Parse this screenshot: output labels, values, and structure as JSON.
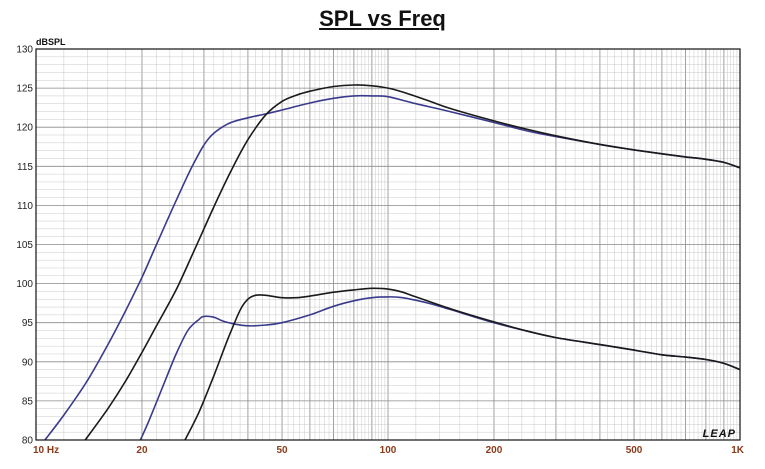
{
  "chart_data": {
    "type": "line",
    "title": "SPL vs Freq",
    "ylabel": "dBSPL",
    "xscale": "log",
    "xlim": [
      10,
      1000
    ],
    "ylim": [
      80,
      130
    ],
    "grid": true,
    "y_ticks": [
      "80",
      "85",
      "90",
      "95",
      "100",
      "105",
      "110",
      "115",
      "120",
      "125",
      "130"
    ],
    "y_tick_values": [
      80,
      85,
      90,
      95,
      100,
      105,
      110,
      115,
      120,
      125,
      130
    ],
    "x_ticks": [
      "10 Hz",
      "20",
      "50",
      "100",
      "200",
      "500",
      "1K"
    ],
    "x_tick_values": [
      10,
      20,
      50,
      100,
      200,
      500,
      1000
    ],
    "brand": "LEAP",
    "colors": {
      "blue": "#3a3a8c",
      "black": "#1a1a1a",
      "xtick": "#8b3a1a",
      "grid": "#bdbdbd",
      "grid_major": "#8a8a8a"
    },
    "series": [
      {
        "color": "#3a3a8c",
        "x": [
          10.6,
          12,
          14,
          16,
          18,
          20,
          22,
          25,
          28,
          31,
          35,
          40,
          45,
          50,
          60,
          70,
          80,
          90,
          100,
          120,
          150,
          200,
          250,
          300,
          400,
          500,
          600,
          700,
          800,
          900,
          1000
        ],
        "y": [
          80,
          83.2,
          87.6,
          92.2,
          96.6,
          100.8,
          105.0,
          110.6,
          115.3,
          118.6,
          120.4,
          121.2,
          121.7,
          122.2,
          123.1,
          123.7,
          124.0,
          124.0,
          123.9,
          123.0,
          122.0,
          120.6,
          119.5,
          118.8,
          117.8,
          117.1,
          116.6,
          116.2,
          115.9,
          115.5,
          114.8
        ]
      },
      {
        "color": "#1a1a1a",
        "x": [
          13.8,
          16,
          18,
          20,
          22,
          25,
          28,
          32,
          36,
          40,
          45,
          50,
          55,
          60,
          70,
          80,
          90,
          100,
          110,
          130,
          150,
          200,
          250,
          300,
          400,
          500,
          600,
          700,
          800,
          900,
          1000
        ],
        "y": [
          80,
          84.0,
          87.6,
          91.2,
          94.6,
          99.2,
          104.0,
          109.8,
          114.6,
          118.4,
          121.6,
          123.3,
          124.1,
          124.6,
          125.2,
          125.4,
          125.3,
          125.0,
          124.5,
          123.4,
          122.4,
          120.8,
          119.7,
          118.9,
          117.8,
          117.1,
          116.6,
          116.2,
          115.9,
          115.5,
          114.8
        ]
      },
      {
        "color": "#3a3a8c",
        "x": [
          19.8,
          21,
          23,
          25,
          27,
          29,
          30,
          32,
          34,
          37,
          40,
          45,
          50,
          60,
          70,
          80,
          90,
          100,
          110,
          130,
          150,
          200,
          250,
          300,
          400,
          500,
          600,
          700,
          800,
          900,
          1000
        ],
        "y": [
          80,
          82.6,
          87.0,
          91.0,
          94.0,
          95.4,
          95.8,
          95.7,
          95.2,
          94.8,
          94.6,
          94.7,
          95.0,
          96.0,
          97.1,
          97.8,
          98.2,
          98.3,
          98.2,
          97.5,
          96.7,
          95.0,
          93.9,
          93.1,
          92.2,
          91.5,
          90.9,
          90.6,
          90.3,
          89.8,
          89.0
        ]
      },
      {
        "color": "#1a1a1a",
        "x": [
          26.5,
          29,
          32,
          35,
          38,
          40,
          42,
          45,
          50,
          55,
          60,
          70,
          80,
          90,
          100,
          110,
          120,
          150,
          200,
          250,
          300,
          400,
          500,
          600,
          700,
          800,
          900,
          1000
        ],
        "y": [
          80,
          83.5,
          88.2,
          92.8,
          96.6,
          98.0,
          98.5,
          98.5,
          98.2,
          98.2,
          98.4,
          98.9,
          99.2,
          99.4,
          99.3,
          98.9,
          98.3,
          96.8,
          95.1,
          93.9,
          93.1,
          92.2,
          91.5,
          90.9,
          90.6,
          90.3,
          89.8,
          89.0
        ]
      }
    ]
  }
}
